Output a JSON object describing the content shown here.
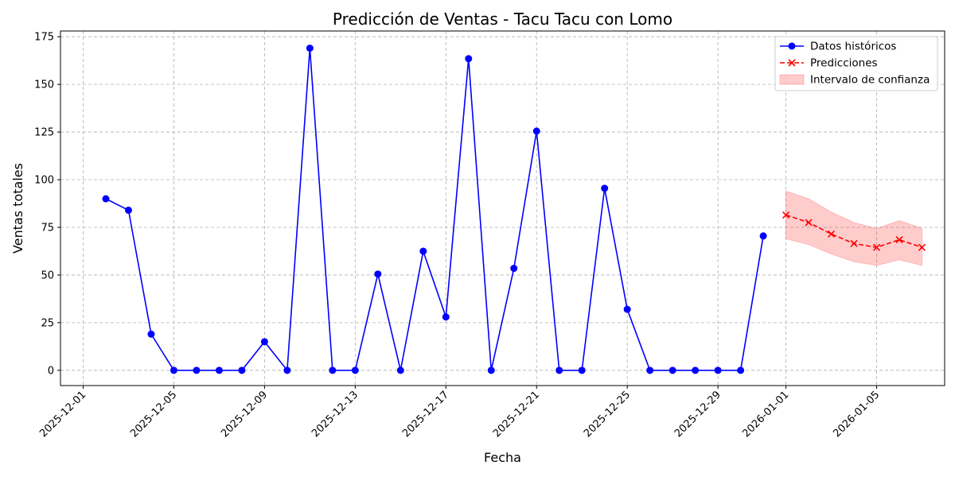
{
  "chart_data": {
    "type": "line",
    "title": "Predicción de Ventas - Tacu Tacu con Lomo",
    "xlabel": "Fecha",
    "ylabel": "Ventas totales",
    "x_tick_labels": [
      "2025-12-01",
      "2025-12-05",
      "2025-12-09",
      "2025-12-13",
      "2025-12-17",
      "2025-12-21",
      "2025-12-25",
      "2025-12-29",
      "2026-01-01",
      "2026-01-05"
    ],
    "y_ticks": [
      0,
      25,
      50,
      75,
      100,
      125,
      150,
      175
    ],
    "xlim": [
      "2025-11-30",
      "2026-01-08"
    ],
    "ylim": [
      -8,
      178
    ],
    "grid": true,
    "legend_position": "top-right",
    "series": [
      {
        "name": "Datos históricos",
        "color": "#0000ff",
        "marker": "circle",
        "linestyle": "solid",
        "x": [
          "2025-12-02",
          "2025-12-03",
          "2025-12-04",
          "2025-12-05",
          "2025-12-06",
          "2025-12-07",
          "2025-12-08",
          "2025-12-09",
          "2025-12-10",
          "2025-12-11",
          "2025-12-12",
          "2025-12-13",
          "2025-12-14",
          "2025-12-15",
          "2025-12-16",
          "2025-12-17",
          "2025-12-18",
          "2025-12-19",
          "2025-12-20",
          "2025-12-21",
          "2025-12-22",
          "2025-12-23",
          "2025-12-24",
          "2025-12-25",
          "2025-12-26",
          "2025-12-27",
          "2025-12-28",
          "2025-12-29",
          "2025-12-30",
          "2025-12-31"
        ],
        "y": [
          90,
          84,
          19,
          0,
          0,
          0,
          0,
          15,
          0,
          169,
          0,
          0,
          50.5,
          0,
          62.5,
          28,
          163.5,
          0,
          53.5,
          125.5,
          0,
          0,
          95.5,
          32,
          0,
          0,
          0,
          0,
          0,
          70.5
        ]
      },
      {
        "name": "Predicciones",
        "color": "#ff0000",
        "marker": "x",
        "linestyle": "dashed",
        "x": [
          "2026-01-01",
          "2026-01-02",
          "2026-01-03",
          "2026-01-04",
          "2026-01-05",
          "2026-01-06",
          "2026-01-07"
        ],
        "y": [
          81.5,
          77.5,
          71.5,
          66.5,
          64.5,
          68.5,
          64.5
        ]
      },
      {
        "name": "Intervalo de confianza",
        "type": "area",
        "color": "#ffcccc",
        "x": [
          "2026-01-01",
          "2026-01-02",
          "2026-01-03",
          "2026-01-04",
          "2026-01-05",
          "2026-01-06",
          "2026-01-07"
        ],
        "lower": [
          69,
          66,
          61,
          57,
          55,
          58,
          55
        ],
        "upper": [
          94,
          90,
          83,
          77.5,
          74.5,
          78.5,
          74.5
        ]
      }
    ]
  }
}
